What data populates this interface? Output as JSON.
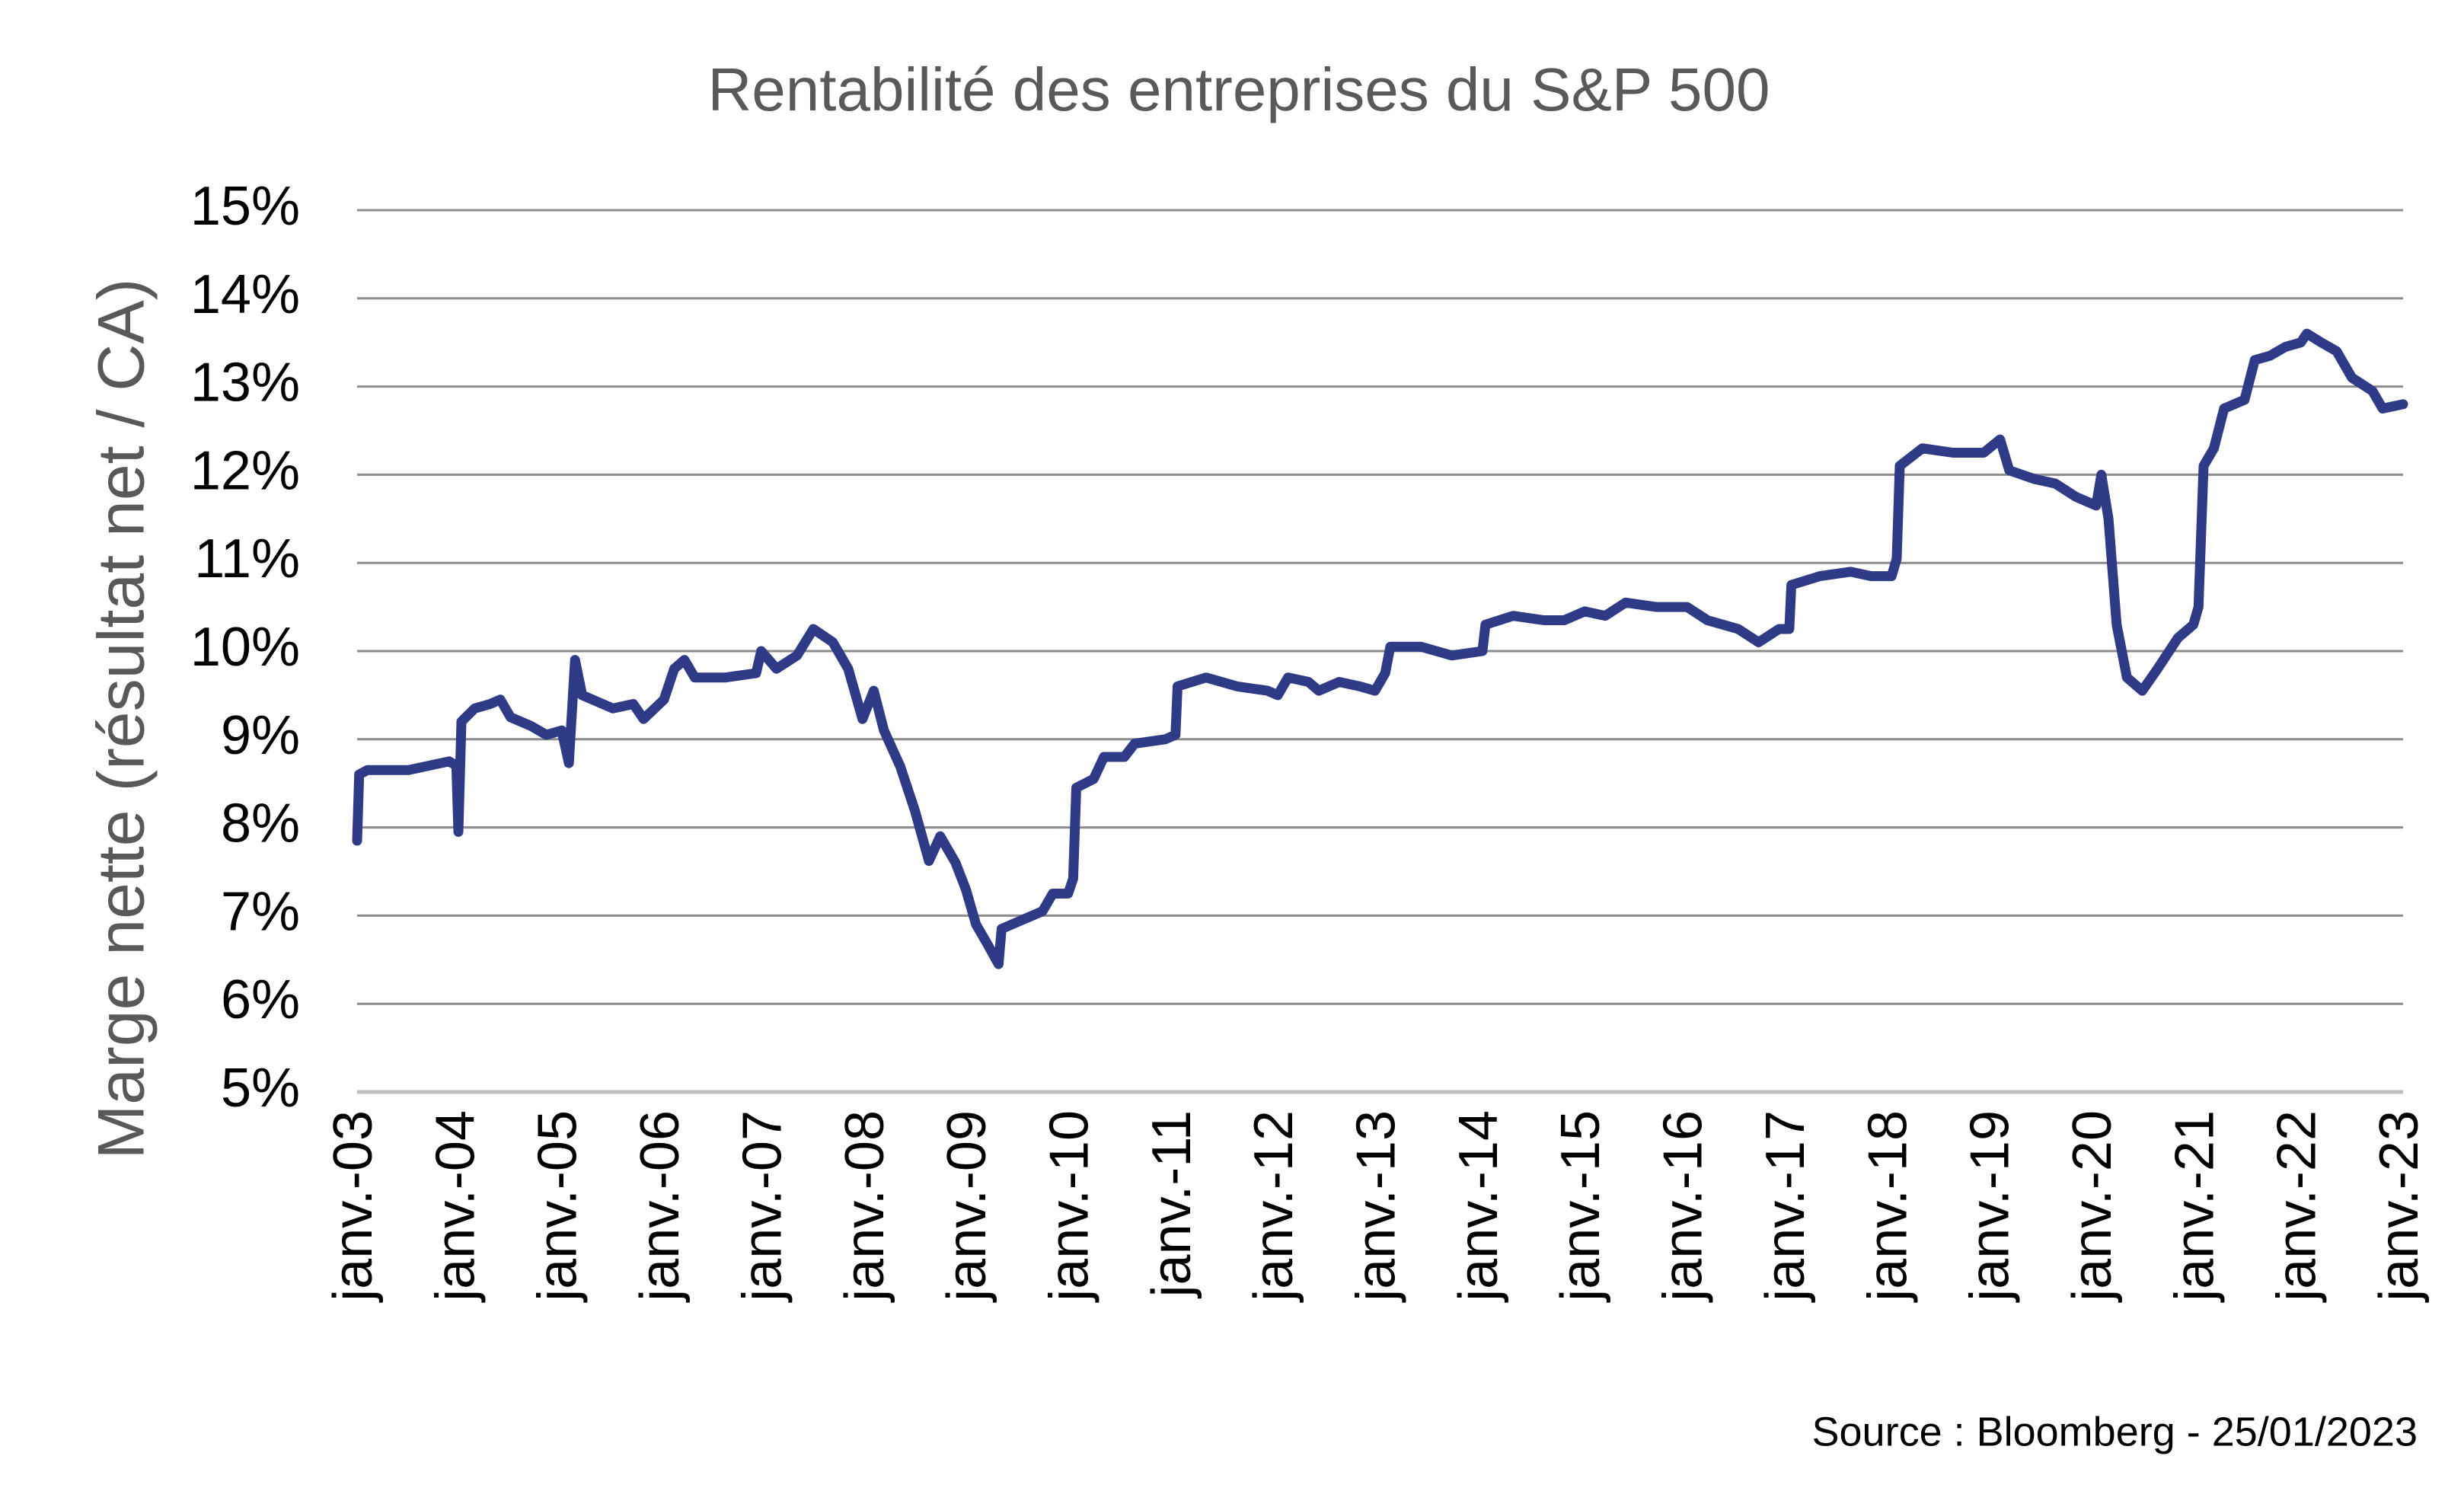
{
  "chart_data": {
    "type": "line",
    "title": "Rentabilité des entreprises du S&P 500",
    "y_label": "Marge nette (résultat net / CA)",
    "source": "Source : Bloomberg - 25/01/2023",
    "color": "#2f3b86",
    "grid": true,
    "x": [
      2003.0,
      2003.02,
      2003.1,
      2003.5,
      2003.9,
      2003.97,
      2003.99,
      2004.02,
      2004.15,
      2004.3,
      2004.4,
      2004.5,
      2004.7,
      2004.85,
      2005.0,
      2005.07,
      2005.13,
      2005.2,
      2005.5,
      2005.7,
      2005.8,
      2006.0,
      2006.1,
      2006.2,
      2006.3,
      2006.6,
      2006.9,
      2006.95,
      2007.1,
      2007.3,
      2007.46,
      2007.65,
      2007.8,
      2007.94,
      2008.05,
      2008.15,
      2008.31,
      2008.45,
      2008.59,
      2008.7,
      2008.85,
      2008.95,
      2009.05,
      2009.15,
      2009.27,
      2009.3,
      2009.5,
      2009.7,
      2009.8,
      2009.95,
      2010.0,
      2010.03,
      2010.2,
      2010.3,
      2010.5,
      2010.6,
      2010.9,
      2011.0,
      2011.02,
      2011.3,
      2011.6,
      2011.9,
      2012.0,
      2012.1,
      2012.3,
      2012.4,
      2012.6,
      2012.8,
      2012.95,
      2013.05,
      2013.1,
      2013.4,
      2013.7,
      2014.0,
      2014.03,
      2014.3,
      2014.6,
      2014.8,
      2015.0,
      2015.2,
      2015.4,
      2015.7,
      2016.0,
      2016.2,
      2016.5,
      2016.7,
      2016.9,
      2017.0,
      2017.02,
      2017.3,
      2017.6,
      2017.8,
      2018.0,
      2018.05,
      2018.08,
      2018.3,
      2018.6,
      2018.9,
      2019.06,
      2019.15,
      2019.4,
      2019.6,
      2019.8,
      2020.0,
      2020.05,
      2020.12,
      2020.2,
      2020.3,
      2020.45,
      2020.6,
      2020.8,
      2020.95,
      2021.0,
      2021.05,
      2021.15,
      2021.25,
      2021.45,
      2021.55,
      2021.7,
      2021.85,
      2022.0,
      2022.06,
      2022.2,
      2022.35,
      2022.5,
      2022.7,
      2022.8,
      2023.0
    ],
    "values": [
      7.85,
      8.6,
      8.65,
      8.65,
      8.75,
      8.7,
      7.95,
      9.2,
      9.35,
      9.4,
      9.45,
      9.25,
      9.15,
      9.05,
      9.1,
      8.73,
      9.9,
      9.5,
      9.35,
      9.4,
      9.23,
      9.45,
      9.8,
      9.9,
      9.7,
      9.7,
      9.75,
      10.0,
      9.8,
      9.95,
      10.25,
      10.1,
      9.8,
      9.23,
      9.55,
      9.1,
      8.69,
      8.2,
      7.62,
      7.9,
      7.6,
      7.3,
      6.9,
      6.7,
      6.45,
      6.85,
      6.95,
      7.05,
      7.25,
      7.25,
      7.42,
      8.45,
      8.55,
      8.8,
      8.8,
      8.95,
      9.0,
      9.05,
      9.6,
      9.7,
      9.6,
      9.55,
      9.5,
      9.7,
      9.65,
      9.55,
      9.65,
      9.6,
      9.55,
      9.75,
      10.05,
      10.05,
      9.95,
      10.0,
      10.3,
      10.4,
      10.35,
      10.35,
      10.45,
      10.4,
      10.55,
      10.5,
      10.5,
      10.35,
      10.25,
      10.1,
      10.25,
      10.25,
      10.75,
      10.85,
      10.9,
      10.85,
      10.85,
      11.05,
      12.1,
      12.3,
      12.25,
      12.25,
      12.4,
      12.05,
      11.95,
      11.9,
      11.75,
      11.65,
      12.0,
      11.5,
      10.3,
      9.7,
      9.55,
      9.8,
      10.15,
      10.3,
      10.5,
      12.1,
      12.3,
      12.75,
      12.85,
      13.3,
      13.35,
      13.45,
      13.5,
      13.6,
      13.5,
      13.4,
      13.1,
      12.95,
      12.75,
      12.8
    ],
    "xlim": [
      2003,
      2023
    ],
    "xticks": [
      {
        "value": 2003,
        "label": "janv.-03"
      },
      {
        "value": 2004,
        "label": "janv.-04"
      },
      {
        "value": 2005,
        "label": "janv.-05"
      },
      {
        "value": 2006,
        "label": "janv.-06"
      },
      {
        "value": 2007,
        "label": "janv.-07"
      },
      {
        "value": 2008,
        "label": "janv.-08"
      },
      {
        "value": 2009,
        "label": "janv.-09"
      },
      {
        "value": 2010,
        "label": "janv.-10"
      },
      {
        "value": 2011,
        "label": "janv.-11"
      },
      {
        "value": 2012,
        "label": "janv.-12"
      },
      {
        "value": 2013,
        "label": "janv.-13"
      },
      {
        "value": 2014,
        "label": "janv.-14"
      },
      {
        "value": 2015,
        "label": "janv.-15"
      },
      {
        "value": 2016,
        "label": "janv.-16"
      },
      {
        "value": 2017,
        "label": "janv.-17"
      },
      {
        "value": 2018,
        "label": "janv.-18"
      },
      {
        "value": 2019,
        "label": "janv.-19"
      },
      {
        "value": 2020,
        "label": "janv.-20"
      },
      {
        "value": 2021,
        "label": "janv.-21"
      },
      {
        "value": 2022,
        "label": "janv.-22"
      },
      {
        "value": 2023,
        "label": "janv.-23"
      }
    ],
    "ylim": [
      5,
      15
    ],
    "yticks": [
      {
        "value": 5,
        "label": "5%"
      },
      {
        "value": 6,
        "label": "6%"
      },
      {
        "value": 7,
        "label": "7%"
      },
      {
        "value": 8,
        "label": "8%"
      },
      {
        "value": 9,
        "label": "9%"
      },
      {
        "value": 10,
        "label": "10%"
      },
      {
        "value": 11,
        "label": "11%"
      },
      {
        "value": 12,
        "label": "12%"
      },
      {
        "value": 13,
        "label": "13%"
      },
      {
        "value": 14,
        "label": "14%"
      },
      {
        "value": 15,
        "label": "15%"
      }
    ]
  }
}
